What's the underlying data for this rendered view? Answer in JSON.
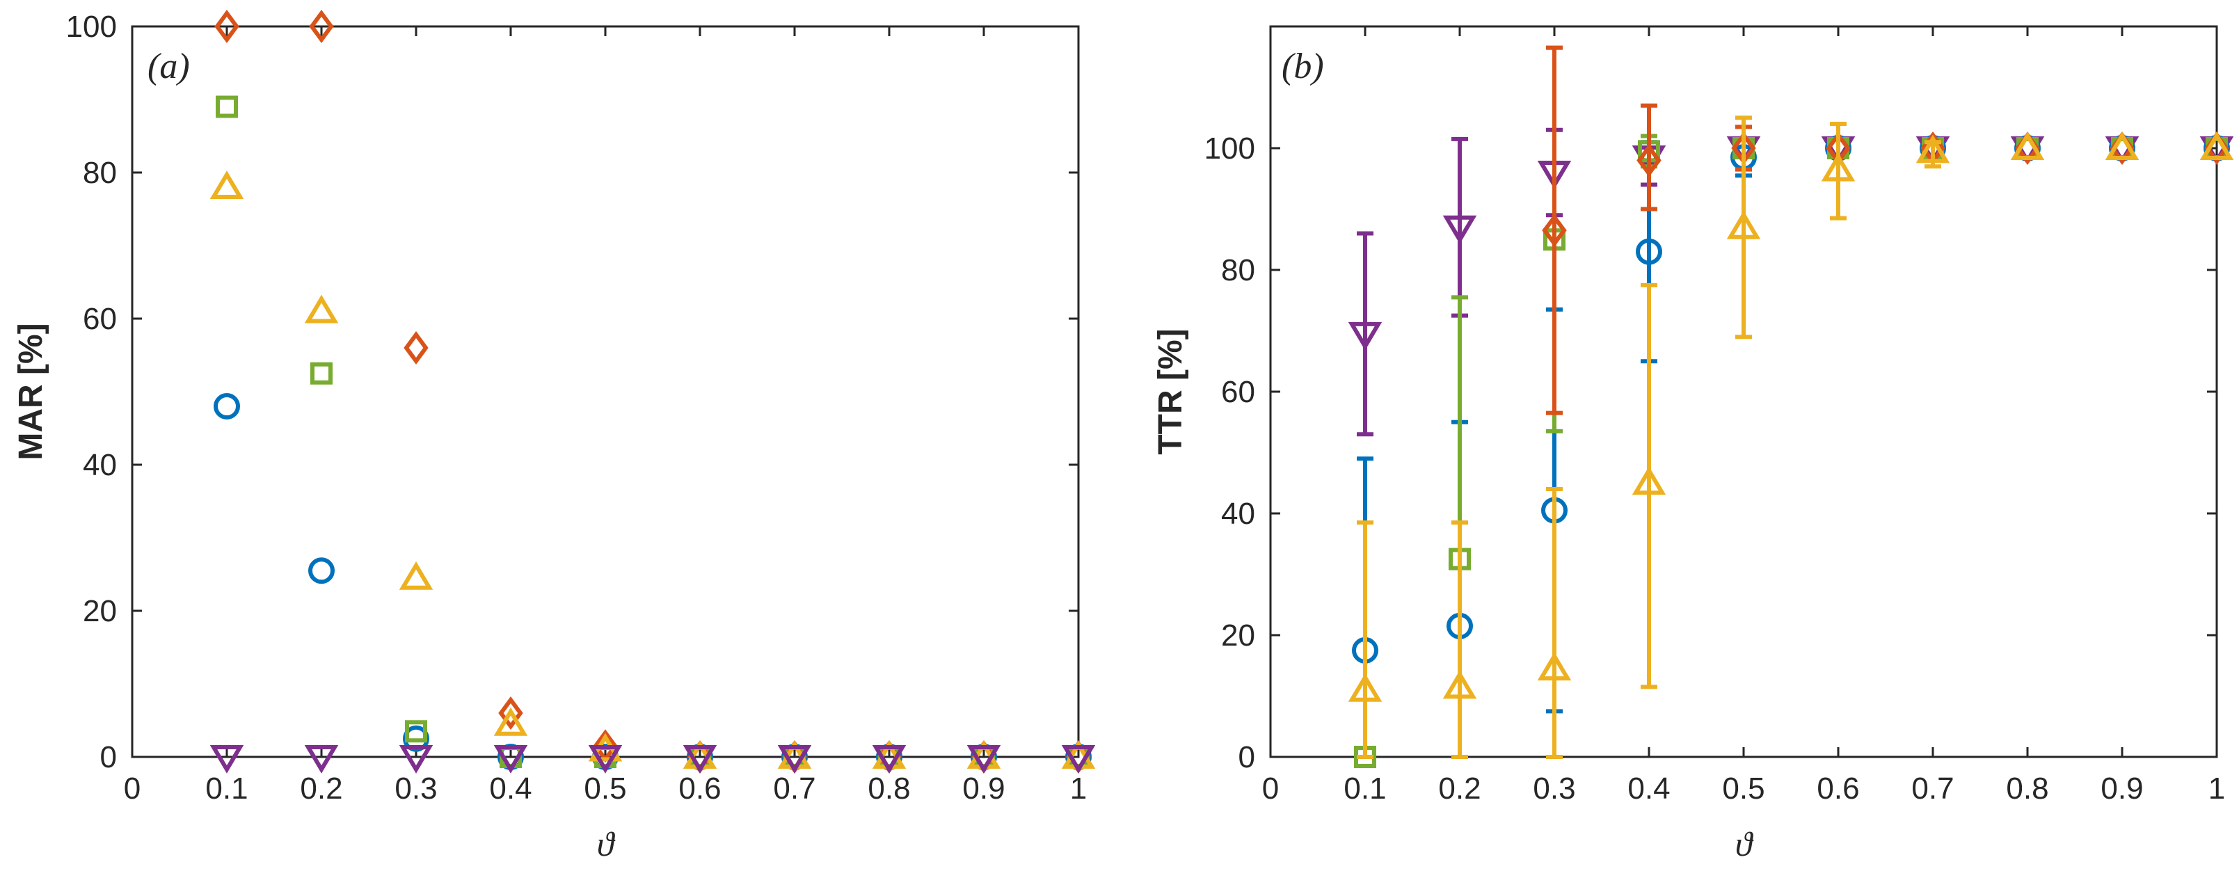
{
  "chart_data": [
    {
      "type": "scatter",
      "panel_label": "(a)",
      "xlabel": "ϑ",
      "ylabel": "MAR [%]",
      "xlim": [
        0,
        1
      ],
      "ylim": [
        0,
        100
      ],
      "xticks": [
        0,
        0.1,
        0.2,
        0.3,
        0.4,
        0.5,
        0.6,
        0.7,
        0.8,
        0.9,
        1
      ],
      "xtick_labels": [
        "0",
        "0.1",
        "0.2",
        "0.3",
        "0.4",
        "0.5",
        "0.6",
        "0.7",
        "0.8",
        "0.9",
        "1"
      ],
      "yticks": [
        0,
        20,
        40,
        60,
        80,
        100
      ],
      "ytick_labels": [
        "0",
        "20",
        "40",
        "60",
        "80",
        "100"
      ],
      "series": [
        {
          "marker": "circle",
          "color": "#0072BD",
          "x": [
            0.1,
            0.2,
            0.3,
            0.4,
            0.5,
            0.6,
            0.7,
            0.8,
            0.9,
            1.0
          ],
          "y": [
            48,
            25.5,
            2.5,
            0,
            0,
            0,
            0,
            0,
            0,
            0
          ]
        },
        {
          "marker": "diamond",
          "color": "#D95319",
          "x": [
            0.1,
            0.2,
            0.3,
            0.4,
            0.5,
            0.6,
            0.7,
            0.8,
            0.9,
            1.0
          ],
          "y": [
            100,
            100,
            56,
            6,
            1.5,
            0,
            0,
            0,
            0,
            0
          ]
        },
        {
          "marker": "square",
          "color": "#77AC30",
          "x": [
            0.1,
            0.2,
            0.3,
            0.4,
            0.5,
            0.6,
            0.7,
            0.8,
            0.9,
            1.0
          ],
          "y": [
            89,
            52.5,
            3.5,
            0,
            0,
            0,
            0,
            0,
            0,
            0
          ]
        },
        {
          "marker": "triangle-up",
          "color": "#EDB120",
          "x": [
            0.1,
            0.2,
            0.3,
            0.4,
            0.5,
            0.6,
            0.7,
            0.8,
            0.9,
            1.0
          ],
          "y": [
            78,
            61,
            24.5,
            4.5,
            1,
            0,
            0,
            0,
            0,
            0
          ]
        },
        {
          "marker": "triangle-down",
          "color": "#7E2F8E",
          "x": [
            0.1,
            0.2,
            0.3,
            0.4,
            0.5,
            0.6,
            0.7,
            0.8,
            0.9,
            1.0
          ],
          "y": [
            0,
            0,
            0,
            0,
            0,
            0,
            0,
            0,
            0,
            0
          ]
        }
      ]
    },
    {
      "type": "errorbar",
      "panel_label": "(b)",
      "xlabel": "ϑ",
      "ylabel": "TTR [%]",
      "xlim": [
        0,
        1
      ],
      "ylim": [
        0,
        120
      ],
      "xticks": [
        0,
        0.1,
        0.2,
        0.3,
        0.4,
        0.5,
        0.6,
        0.7,
        0.8,
        0.9,
        1
      ],
      "xtick_labels": [
        "0",
        "0.1",
        "0.2",
        "0.3",
        "0.4",
        "0.5",
        "0.6",
        "0.7",
        "0.8",
        "0.9",
        "1"
      ],
      "yticks": [
        0,
        20,
        40,
        60,
        80,
        100
      ],
      "ytick_labels": [
        "0",
        "20",
        "40",
        "60",
        "80",
        "100"
      ],
      "series": [
        {
          "marker": "triangle-down",
          "color": "#7E2F8E",
          "x": [
            0.1,
            0.2,
            0.3,
            0.4,
            0.5,
            0.6,
            0.7,
            0.8,
            0.9,
            1.0
          ],
          "y": [
            69.5,
            87,
            96,
            98.5,
            100,
            100,
            100,
            100,
            100,
            100
          ],
          "lower": [
            53,
            72.5,
            89,
            94,
            100,
            100,
            100,
            100,
            100,
            100
          ],
          "upper": [
            86,
            101.5,
            103,
            102,
            100,
            100,
            100,
            100,
            100,
            100
          ]
        },
        {
          "marker": "circle",
          "color": "#0072BD",
          "x": [
            0.1,
            0.2,
            0.3,
            0.4,
            0.5,
            0.6,
            0.7,
            0.8,
            0.9,
            1.0
          ],
          "y": [
            17.5,
            21.5,
            40.5,
            83,
            98.5,
            100,
            100,
            100,
            100,
            100
          ],
          "lower": [
            0,
            0,
            7.5,
            65,
            95.5,
            100,
            100,
            100,
            100,
            100
          ],
          "upper": [
            49,
            55,
            73.5,
            101,
            101.5,
            100,
            100,
            100,
            100,
            100
          ]
        },
        {
          "marker": "square",
          "color": "#77AC30",
          "x": [
            0.1,
            0.2,
            0.3,
            0.4,
            0.5,
            0.6,
            0.7,
            0.8,
            0.9,
            1.0
          ],
          "y": [
            0,
            32.5,
            85,
            99.5,
            100,
            100,
            100,
            100,
            100,
            100
          ],
          "lower": [
            0,
            0,
            53.5,
            97,
            100,
            100,
            100,
            100,
            100,
            100
          ],
          "upper": [
            0,
            75.5,
            116.5,
            102,
            100,
            100,
            100,
            100,
            100,
            100
          ]
        },
        {
          "marker": "diamond",
          "color": "#D95319",
          "x": [
            0.1,
            0.2,
            0.3,
            0.4,
            0.5,
            0.6,
            0.7,
            0.8,
            0.9,
            1.0
          ],
          "y": [
            0,
            0,
            86.5,
            98,
            100,
            100,
            100,
            100,
            100,
            100
          ],
          "lower": [
            0,
            0,
            56.5,
            90,
            96.5,
            100,
            100,
            100,
            100,
            100
          ],
          "upper": [
            0,
            0,
            116.5,
            107,
            103.5,
            100,
            100,
            100,
            100,
            100
          ],
          "show": [
            false,
            false,
            true,
            true,
            true,
            true,
            true,
            true,
            true,
            true
          ]
        },
        {
          "marker": "triangle-up",
          "color": "#EDB120",
          "x": [
            0.1,
            0.2,
            0.3,
            0.4,
            0.5,
            0.6,
            0.7,
            0.8,
            0.9,
            1.0
          ],
          "y": [
            11,
            11.5,
            14.5,
            45,
            87,
            96.5,
            99.5,
            100,
            100,
            100
          ],
          "lower": [
            0,
            0,
            0,
            11.5,
            69,
            88.5,
            97,
            100,
            100,
            100
          ],
          "upper": [
            38.5,
            38.5,
            44,
            77.5,
            105,
            104,
            101,
            100,
            100,
            100
          ]
        }
      ]
    }
  ]
}
